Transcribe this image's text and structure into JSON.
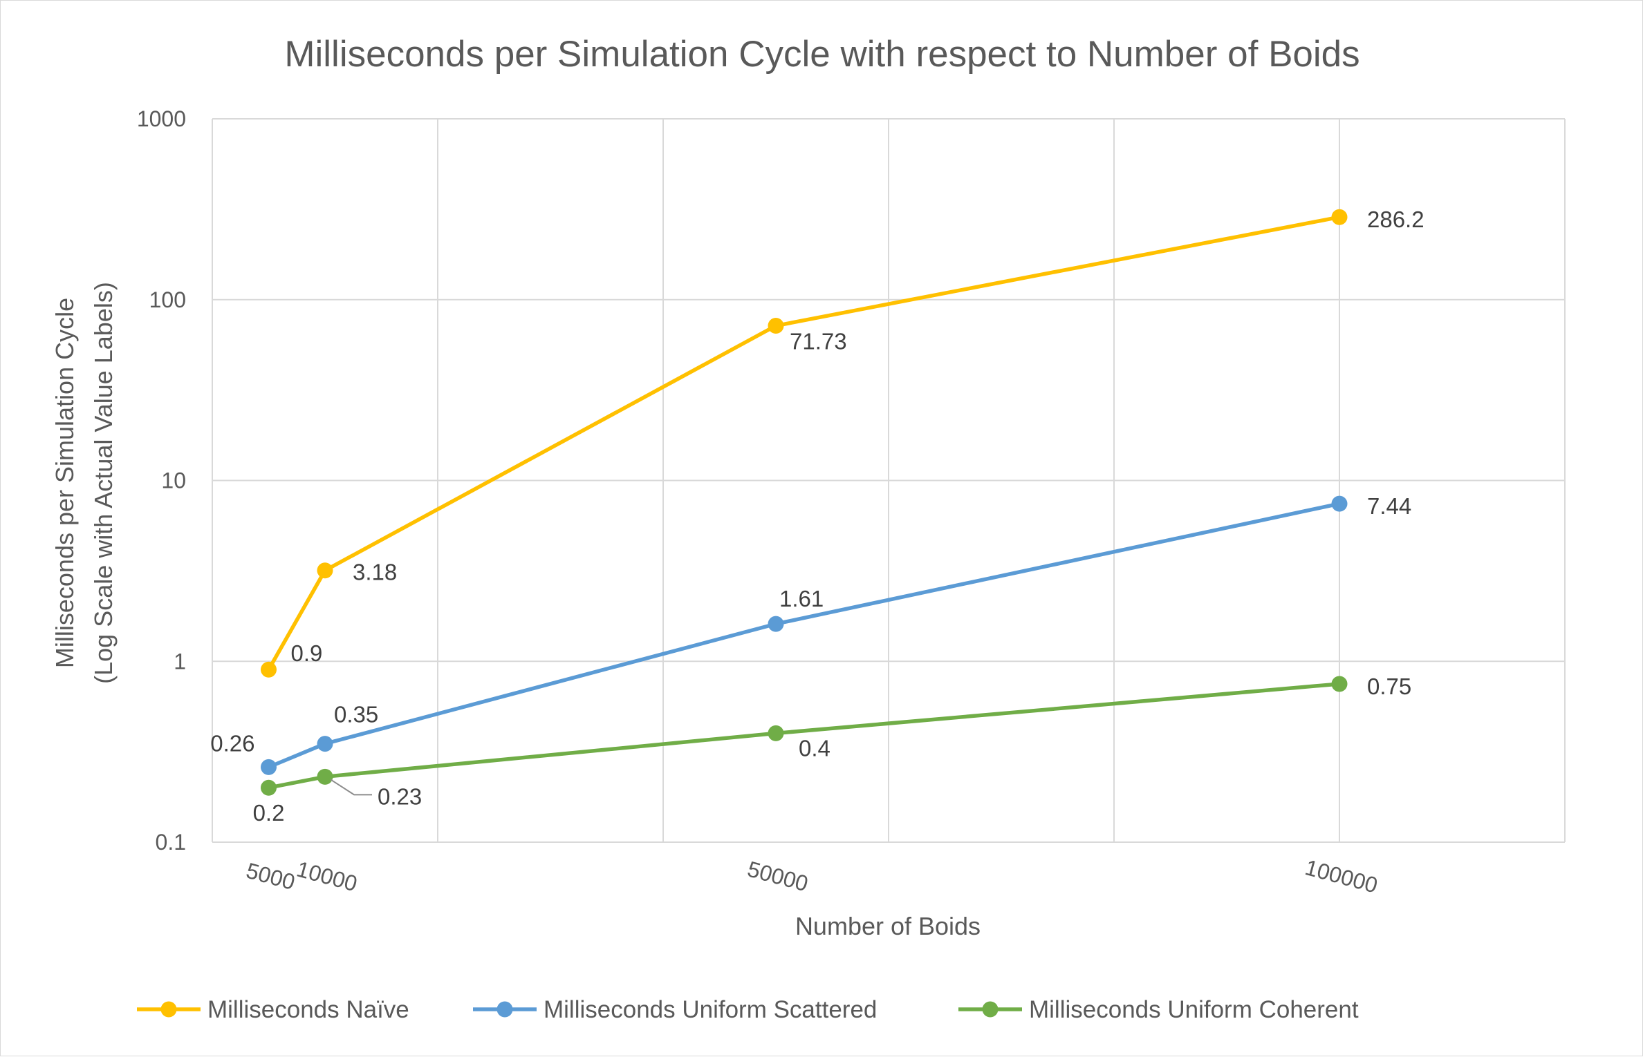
{
  "chart_data": {
    "type": "line",
    "title": "Milliseconds per Simulation Cycle with respect to Number of Boids",
    "xlabel": "Number of Boids",
    "ylabel_lines": [
      "Milliseconds per Simulation Cycle",
      "(Log Scale with Actual Value Labels)"
    ],
    "x": [
      5000,
      10000,
      50000,
      100000
    ],
    "x_tick_labels": [
      "5000",
      "10000",
      "50000",
      "100000"
    ],
    "xlim": [
      0,
      120000
    ],
    "y_scale": "log",
    "ylim": [
      0.1,
      1000
    ],
    "y_tick_labels": [
      "0.1",
      "1",
      "10",
      "100",
      "1000"
    ],
    "grid": true,
    "legend_position": "bottom",
    "series": [
      {
        "name": "Milliseconds Naïve",
        "color": "#FFC000",
        "values": [
          0.9,
          3.18,
          71.73,
          286.2
        ],
        "labels": [
          "0.9",
          "3.18",
          "71.73",
          "286.2"
        ]
      },
      {
        "name": "Milliseconds Uniform Scattered",
        "color": "#5B9BD5",
        "values": [
          0.26,
          0.35,
          1.61,
          7.44
        ],
        "labels": [
          "0.26",
          "0.35",
          "1.61",
          "7.44"
        ]
      },
      {
        "name": "Milliseconds Uniform Coherent",
        "color": "#70AD47",
        "values": [
          0.2,
          0.23,
          0.4,
          0.75
        ],
        "labels": [
          "0.2",
          "0.23",
          "0.4",
          "0.75"
        ]
      }
    ]
  }
}
